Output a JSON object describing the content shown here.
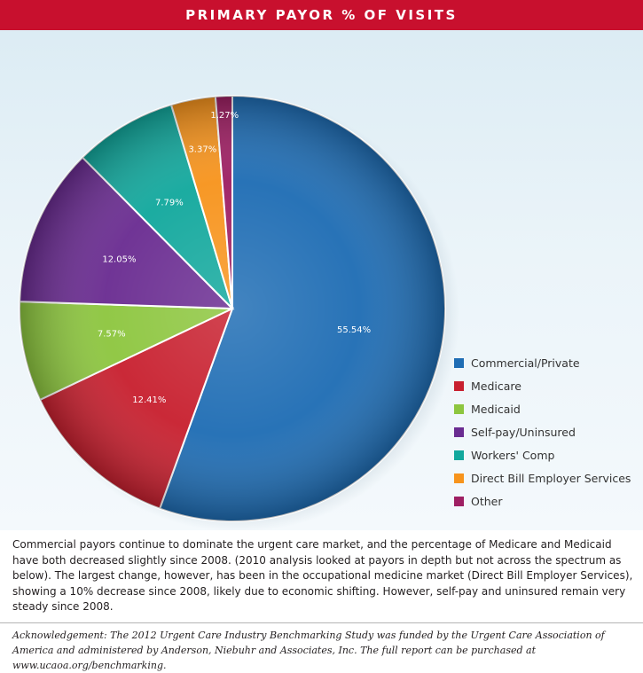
{
  "header": {
    "title": "PRIMARY PAYOR % OF VISITS"
  },
  "chart_data": {
    "type": "pie",
    "title": "PRIMARY PAYOR % OF VISITS",
    "legend_position": "bottom-right",
    "slices": [
      {
        "label": "Commercial/Private",
        "value": 55.54,
        "display": "55.54%",
        "color": "#1f6db4"
      },
      {
        "label": "Medicare",
        "value": 12.41,
        "display": "12.41%",
        "color": "#c8202f"
      },
      {
        "label": "Medicaid",
        "value": 7.57,
        "display": "7.57%",
        "color": "#8dc63f"
      },
      {
        "label": "Self-pay/Uninsured",
        "value": 12.05,
        "display": "12.05%",
        "color": "#6a2c91"
      },
      {
        "label": "Workers' Comp",
        "value": 7.79,
        "display": "7.79%",
        "color": "#12a89d"
      },
      {
        "label": "Direct Bill Employer Services",
        "value": 3.37,
        "display": "3.37%",
        "color": "#f7941d"
      },
      {
        "label": "Other",
        "value": 1.27,
        "display": "1.27%",
        "color": "#9e1f63"
      }
    ]
  },
  "body_text": "Commercial payors continue to dominate the urgent care market, and the percentage of Medicare and Medicaid have both decreased slightly since 2008. (2010 analysis looked at payors in depth but not across the spectrum as below). The largest change, however, has been in the occupational medicine market (Direct Bill Employer Services), showing a 10% decrease since 2008, likely due to economic shifting. However, self-pay and uninsured remain very steady since 2008.",
  "acknowledgement": "Acknowledgement: The 2012 Urgent Care Industry Benchmarking Study was funded by the Urgent Care Association of America and administered by Anderson, Niebuhr and Associates, Inc. The full report can be purchased at www.ucaoa.org/benchmarking."
}
